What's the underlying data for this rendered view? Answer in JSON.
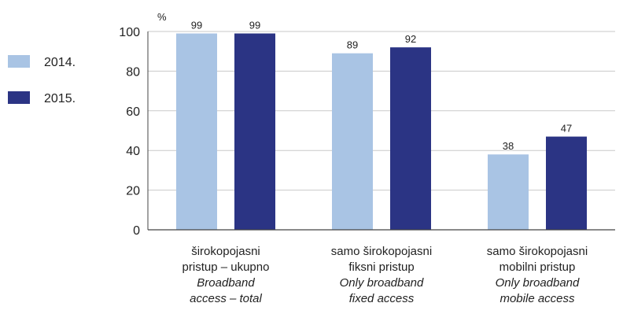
{
  "chart_data": {
    "type": "bar",
    "unit_label": "%",
    "ylim": [
      0,
      100
    ],
    "yticks": [
      0,
      20,
      40,
      60,
      80,
      100
    ],
    "grid": true,
    "legend_position": "left",
    "categories": [
      [
        "širokopojasni",
        "pristup – ukupno",
        "Broadband",
        "access – total"
      ],
      [
        "samo širokopojasni",
        "fiksni pristup",
        "Only broadband",
        "fixed access"
      ],
      [
        "samo širokopojasni",
        "mobilni pristup",
        "Only broadband",
        "mobile access"
      ]
    ],
    "series": [
      {
        "name": "2014.",
        "color": "#a9c4e4",
        "values": [
          99,
          89,
          38
        ]
      },
      {
        "name": "2015.",
        "color": "#2b3484",
        "values": [
          99,
          92,
          47
        ]
      }
    ]
  }
}
